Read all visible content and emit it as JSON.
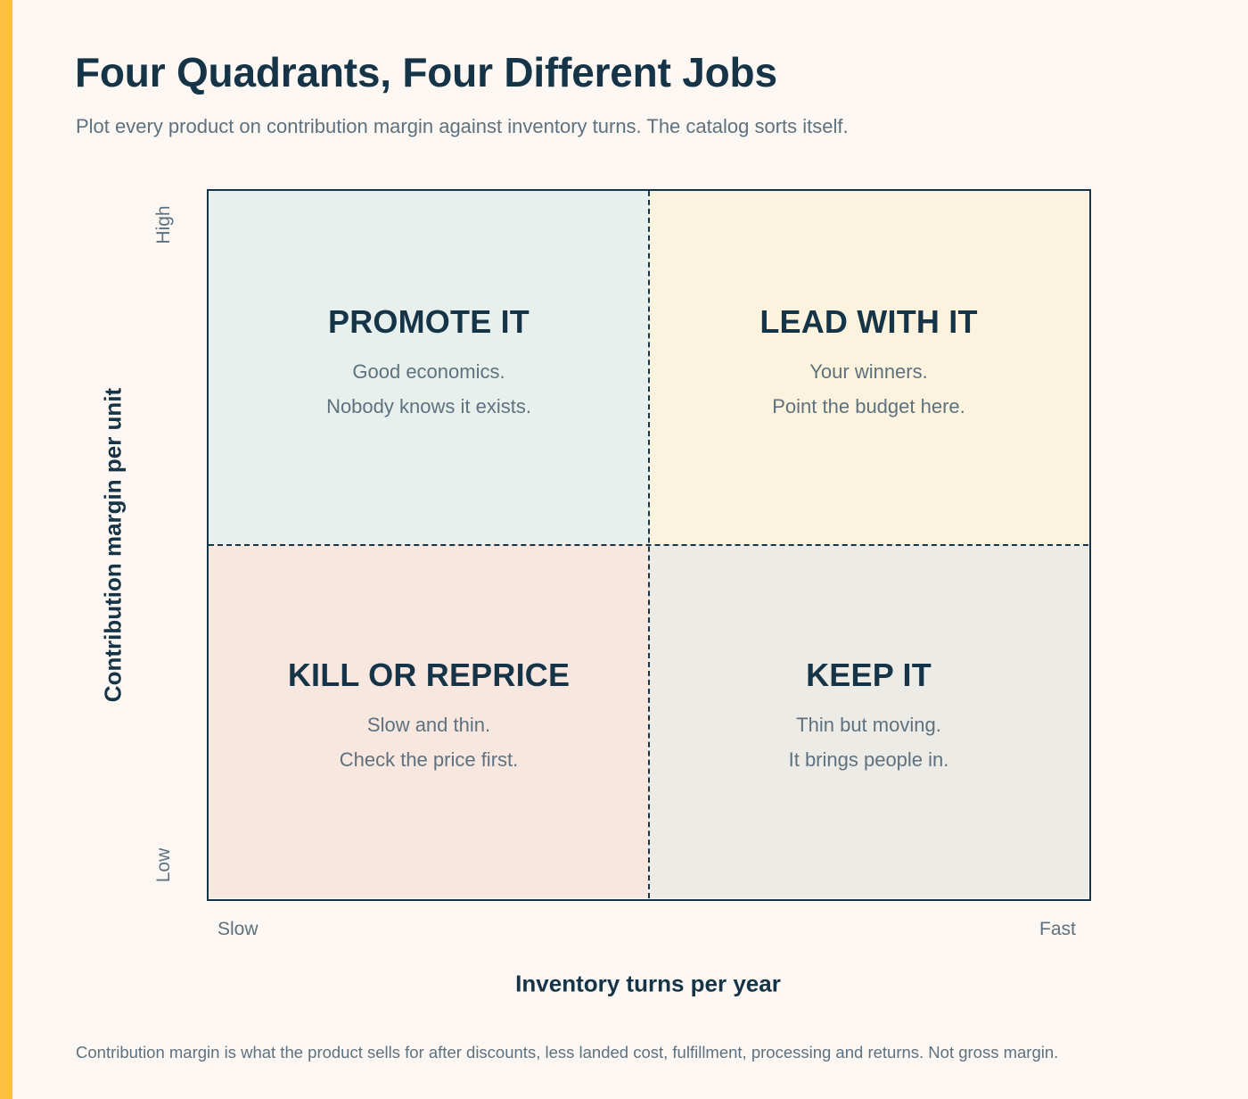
{
  "header": {
    "title": "Four Quadrants, Four Different Jobs",
    "subtitle": "Plot every product on contribution margin against inventory turns. The catalog sorts itself."
  },
  "colors": {
    "accent_bar": "#fec043",
    "ink": "#163447",
    "muted": "#5e717f",
    "background": "#fcf7f2",
    "promote": "#e8f0ed",
    "lead": "#fcf3de",
    "kill": "#f7e7df",
    "keep": "#edebe6"
  },
  "axes": {
    "y_label": "Contribution margin per unit",
    "x_label": "Inventory turns per year",
    "y_high": "High",
    "y_low": "Low",
    "x_low": "Slow",
    "x_high": "Fast"
  },
  "quadrants": {
    "top_left": {
      "title": "PROMOTE IT",
      "line1": "Good economics.",
      "line2": "Nobody knows it exists."
    },
    "top_right": {
      "title": "LEAD WITH IT",
      "line1": "Your winners.",
      "line2": "Point the budget here."
    },
    "bottom_left": {
      "title": "KILL OR REPRICE",
      "line1": "Slow and thin.",
      "line2": "Check the price first."
    },
    "bottom_right": {
      "title": "KEEP IT",
      "line1": "Thin but moving.",
      "line2": "It brings people in."
    }
  },
  "footnote": "Contribution margin is what the product sells for after discounts, less landed cost, fulfillment, processing and returns. Not gross margin."
}
